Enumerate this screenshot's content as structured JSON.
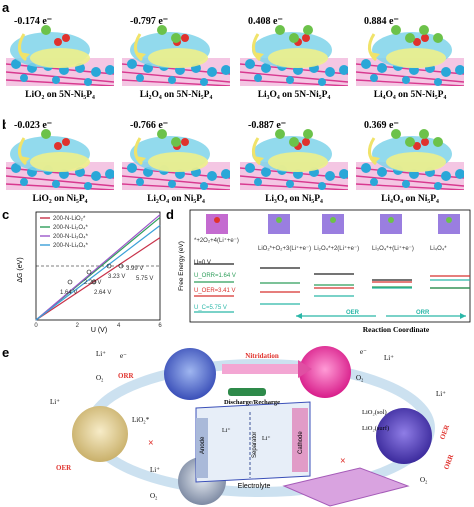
{
  "panel_labels": {
    "a": "a",
    "b": "b",
    "c": "c",
    "d": "d",
    "e": "e"
  },
  "panel_a": {
    "tiles": [
      {
        "charge": "-0.174 e⁻",
        "caption": "LiO₂ on 5N-Ni₅P₄"
      },
      {
        "charge": "-0.797 e⁻",
        "caption": "Li₂O₄ on 5N-Ni₅P₄"
      },
      {
        "charge": "0.408 e⁻",
        "caption": "Li₃O₄ on 5N-Ni₅P₄"
      },
      {
        "charge": "0.884 e⁻",
        "caption": "Li₄O₄ on 5N-Ni₅P₄"
      }
    ]
  },
  "panel_b": {
    "tiles": [
      {
        "charge": "-0.023 e⁻",
        "caption": "LiO₂ on Ni₅P₄"
      },
      {
        "charge": "-0.766 e⁻",
        "caption": "Li₂O₄ on Ni₅P₄"
      },
      {
        "charge": "-0.887 e⁻",
        "caption": "Li₃O₄ on Ni₅P₄"
      },
      {
        "charge": "0.369 e⁻",
        "caption": "Li₄O₄ on Ni₅P₄"
      }
    ]
  },
  "colors": {
    "isosurface_cyan": "#7fd4ea",
    "isosurface_yellow": "#eef08a",
    "ni_blue": "#2aa7d8",
    "p_magenta": "#d8398f",
    "li_green": "#6cc24a",
    "o_red": "#e0322d"
  },
  "chart_data": [
    {
      "type": "line",
      "panel": "c",
      "xlabel": "U (V)",
      "ylabel": "ΔG (eV)",
      "xlim": [
        0,
        6
      ],
      "ylim": [
        -1.4,
        2.6
      ],
      "xticks": [
        0,
        2,
        4,
        6
      ],
      "series": [
        {
          "name": "200-N-LiO₂*",
          "color": "#c8324a",
          "x": [
            0,
            6
          ],
          "y": [
            -1.65,
            1.65
          ]
        },
        {
          "name": "200-N-Li₂O₄*",
          "color": "#2e9e5a",
          "x": [
            0,
            6
          ],
          "y": [
            -2.4,
            2.4
          ]
        },
        {
          "name": "200-N-Li₃O₄*",
          "color": "#9b57c9",
          "x": [
            0,
            6
          ],
          "y": [
            -1.5,
            2.5
          ]
        },
        {
          "name": "200-N-Li₄O₄*",
          "color": "#3aa0d8",
          "x": [
            0,
            6
          ],
          "y": [
            -2.6,
            2.1
          ]
        }
      ],
      "annotations": [
        "3.99 V",
        "3.23 V",
        "2.29 V",
        "1.64 V",
        "2.64 V",
        "5.75 V"
      ]
    },
    {
      "type": "line",
      "panel": "d",
      "ylabel": "Free Energy (eV)",
      "xlabel": "Reaction Coordinate",
      "levels": [
        "*+2O₂+4(Li⁺+e⁻)",
        "LiO₂*+O₂+3(Li⁺+e⁻)",
        "Li₂O₄*+2(Li⁺+e⁻)",
        "Li₃O₄*+(Li⁺+e⁻)",
        "Li₄O₄*"
      ],
      "legend": [
        {
          "name": "U=0 V",
          "color": "#222222"
        },
        {
          "name": "U_ORR=1.64 V",
          "color": "#2e9e5a"
        },
        {
          "name": "U_OER=3.41 V",
          "color": "#d8322d"
        },
        {
          "name": "U_C=5.75 V",
          "color": "#2bb7a8"
        }
      ],
      "arrows": [
        "OER",
        "ORR"
      ]
    }
  ],
  "panel_e": {
    "labels": {
      "nitridation": "Nitridation",
      "discharge": "Discharge/Recharge",
      "anode": "Anode",
      "separator": "Separator",
      "cathode": "Cathode",
      "electrolyte": "Electrolyte",
      "orr_top": "ORR",
      "oer_left": "OER",
      "oer_right": "OER",
      "orr_right": "ORR",
      "li_plus": "Li⁺",
      "e_minus": "e⁻",
      "o2": "O₂",
      "lio2_small": "LiO₂*",
      "lio2_sol": "LiO₂(sol)",
      "lio2_surf": "LiO₂(surf)",
      "li2o2": "Li₂O₂"
    }
  }
}
